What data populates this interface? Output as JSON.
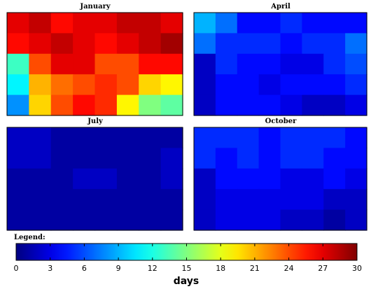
{
  "chart_data": {
    "type": "heatmap",
    "colormap": "jet",
    "vmin": 0,
    "vmax": 30,
    "panels": [
      {
        "title": "January",
        "values": [
          [
            27,
            28,
            26,
            27,
            27,
            28,
            28,
            27
          ],
          [
            26,
            27,
            28,
            27,
            26,
            27,
            28,
            29
          ],
          [
            13,
            24,
            27,
            27,
            24,
            24,
            26,
            26
          ],
          [
            11,
            21,
            23,
            24,
            25,
            24,
            20,
            19
          ],
          [
            8,
            20,
            24,
            26,
            25,
            19,
            15,
            14
          ]
        ]
      },
      {
        "title": "April",
        "values": [
          [
            9,
            7,
            4,
            4,
            5,
            4,
            4,
            4
          ],
          [
            7,
            5,
            5,
            5,
            4,
            5,
            5,
            7
          ],
          [
            2,
            5,
            4,
            4,
            3,
            3,
            5,
            6
          ],
          [
            2,
            4,
            4,
            3,
            4,
            4,
            4,
            5
          ],
          [
            2,
            4,
            4,
            4,
            3,
            2,
            2,
            3
          ]
        ]
      },
      {
        "title": "July",
        "values": [
          [
            2,
            2,
            1,
            1,
            1,
            1,
            1,
            1
          ],
          [
            2,
            2,
            1,
            1,
            1,
            1,
            1,
            2
          ],
          [
            1,
            1,
            1,
            2,
            2,
            1,
            1,
            2
          ],
          [
            1,
            1,
            1,
            1,
            1,
            1,
            1,
            1
          ],
          [
            1,
            1,
            1,
            1,
            1,
            1,
            1,
            1
          ]
        ]
      },
      {
        "title": "October",
        "values": [
          [
            5,
            5,
            5,
            4,
            5,
            5,
            5,
            4
          ],
          [
            5,
            4,
            5,
            4,
            5,
            5,
            4,
            4
          ],
          [
            2,
            4,
            4,
            4,
            3,
            3,
            4,
            3
          ],
          [
            2,
            3,
            3,
            3,
            3,
            3,
            2,
            2
          ],
          [
            2,
            3,
            3,
            3,
            2,
            2,
            1,
            2
          ]
        ]
      }
    ],
    "legend": {
      "title": "Legend:",
      "ticks": [
        0,
        3,
        6,
        9,
        12,
        15,
        18,
        21,
        24,
        27,
        30
      ],
      "tick_labels": [
        "0",
        "3",
        "6",
        "9",
        "12",
        "15",
        "18",
        "21",
        "24",
        "27",
        "30"
      ],
      "xlabel": "days"
    }
  }
}
